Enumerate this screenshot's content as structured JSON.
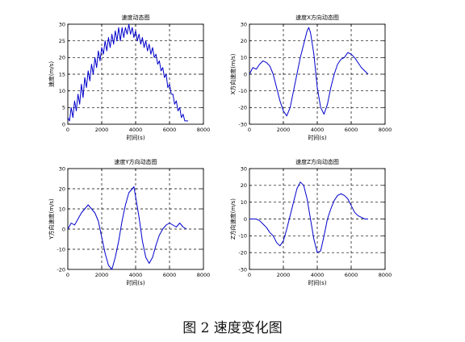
{
  "figure": {
    "caption": "图 2  速度变化图"
  },
  "chart_data": [
    {
      "type": "line",
      "title": "速度动态图",
      "xlabel": "时间(s)",
      "ylabel": "速度(m/s)",
      "xlim": [
        0,
        8000
      ],
      "ylim": [
        0,
        30
      ],
      "xticks": [
        0,
        2000,
        4000,
        6000,
        8000
      ],
      "yticks": [
        0,
        5,
        10,
        15,
        20,
        25,
        30
      ],
      "grid": true,
      "line_color": "#0000cc",
      "series": [
        {
          "x": [
            0,
            100,
            200,
            300,
            400,
            500,
            600,
            700,
            800,
            900,
            1000,
            1100,
            1200,
            1300,
            1400,
            1500,
            1600,
            1700,
            1800,
            1900,
            2000,
            2100,
            2200,
            2300,
            2400,
            2500,
            2600,
            2700,
            2800,
            2900,
            3000,
            3100,
            3200,
            3300,
            3400,
            3500,
            3600,
            3700,
            3800,
            3900,
            4000,
            4100,
            4200,
            4300,
            4400,
            4500,
            4600,
            4700,
            4800,
            4900,
            5000,
            5100,
            5200,
            5300,
            5400,
            5500,
            5600,
            5700,
            5800,
            5900,
            6000,
            6100,
            6200,
            6300,
            6400,
            6500,
            6600,
            6700,
            6800,
            6900,
            7000,
            7100
          ],
          "values": [
            2,
            1,
            5,
            2,
            7,
            4,
            9,
            6,
            12,
            8,
            14,
            11,
            16,
            13,
            18,
            15,
            20,
            17,
            22,
            19,
            23,
            21,
            25,
            22,
            26,
            23,
            27,
            24,
            28,
            25,
            29,
            25,
            29,
            26,
            29,
            27,
            30,
            27,
            29,
            26,
            28,
            25,
            27,
            24,
            26,
            23,
            25,
            22,
            24,
            21,
            23,
            20,
            21,
            18,
            19,
            16,
            17,
            14,
            15,
            11,
            12,
            9,
            9,
            6,
            7,
            4,
            5,
            2,
            3,
            1,
            1,
            1
          ]
        }
      ]
    },
    {
      "type": "line",
      "title": "速度X方向动态图",
      "xlabel": "时间(s)",
      "ylabel": "X方向速度(m/s)",
      "xlim": [
        0,
        8000
      ],
      "ylim": [
        -30,
        30
      ],
      "xticks": [
        0,
        2000,
        4000,
        6000,
        8000
      ],
      "yticks": [
        -30,
        -20,
        -10,
        0,
        10,
        20,
        30
      ],
      "grid": true,
      "line_color": "#0000cc",
      "series": [
        {
          "x": [
            0,
            200,
            400,
            600,
            800,
            1000,
            1200,
            1400,
            1600,
            1800,
            2000,
            2200,
            2400,
            2600,
            2800,
            3000,
            3200,
            3400,
            3500,
            3600,
            3800,
            4000,
            4200,
            4400,
            4600,
            4800,
            5000,
            5200,
            5400,
            5600,
            5800,
            6000,
            6200,
            6400,
            6600,
            6800,
            7000
          ],
          "values": [
            0,
            4,
            3,
            6,
            8,
            7,
            5,
            0,
            -8,
            -16,
            -22,
            -25,
            -20,
            -10,
            0,
            10,
            18,
            26,
            28,
            25,
            12,
            -8,
            -20,
            -24,
            -18,
            -8,
            0,
            6,
            9,
            10,
            13,
            12,
            10,
            7,
            4,
            2,
            0
          ]
        }
      ]
    },
    {
      "type": "line",
      "title": "速度Y方向动态图",
      "xlabel": "时间(s)",
      "ylabel": "Y方向速度(m/s)",
      "xlim": [
        0,
        8000
      ],
      "ylim": [
        -20,
        30
      ],
      "xticks": [
        0,
        2000,
        4000,
        6000,
        8000
      ],
      "yticks": [
        -20,
        -10,
        0,
        10,
        20,
        30
      ],
      "grid": true,
      "line_color": "#0000cc",
      "series": [
        {
          "x": [
            0,
            200,
            400,
            600,
            800,
            1000,
            1200,
            1400,
            1600,
            1800,
            2000,
            2200,
            2400,
            2600,
            2800,
            3000,
            3200,
            3400,
            3600,
            3800,
            3900,
            4000,
            4200,
            4400,
            4600,
            4800,
            5000,
            5200,
            5400,
            5600,
            5800,
            6000,
            6200,
            6400,
            6600,
            6800,
            7000
          ],
          "values": [
            0,
            3,
            2,
            5,
            8,
            10,
            12,
            10,
            8,
            4,
            -4,
            -12,
            -18,
            -20,
            -14,
            -6,
            4,
            12,
            18,
            20,
            21,
            16,
            6,
            -6,
            -14,
            -17,
            -14,
            -8,
            -3,
            0,
            2,
            3,
            2,
            1,
            3,
            1,
            0
          ]
        }
      ]
    },
    {
      "type": "line",
      "title": "速度Z方向动态图",
      "xlabel": "时间(s)",
      "ylabel": "Z方向速度(m/s)",
      "xlim": [
        0,
        8000
      ],
      "ylim": [
        -30,
        30
      ],
      "xticks": [
        0,
        2000,
        4000,
        6000,
        8000
      ],
      "yticks": [
        -30,
        -20,
        -10,
        0,
        10,
        20,
        30
      ],
      "grid": true,
      "line_color": "#0000cc",
      "series": [
        {
          "x": [
            0,
            200,
            400,
            600,
            800,
            1000,
            1200,
            1400,
            1600,
            1800,
            2000,
            2200,
            2400,
            2600,
            2800,
            3000,
            3200,
            3400,
            3600,
            3800,
            4000,
            4200,
            4400,
            4600,
            4800,
            5000,
            5200,
            5400,
            5600,
            5800,
            6000,
            6200,
            6400,
            6600,
            6800,
            7000
          ],
          "values": [
            0,
            0,
            0,
            -1,
            -3,
            -5,
            -8,
            -10,
            -14,
            -16,
            -13,
            -6,
            2,
            10,
            18,
            22,
            20,
            12,
            0,
            -12,
            -20,
            -19,
            -10,
            0,
            6,
            11,
            14,
            15,
            14,
            12,
            8,
            4,
            2,
            1,
            0,
            0
          ]
        }
      ]
    }
  ]
}
